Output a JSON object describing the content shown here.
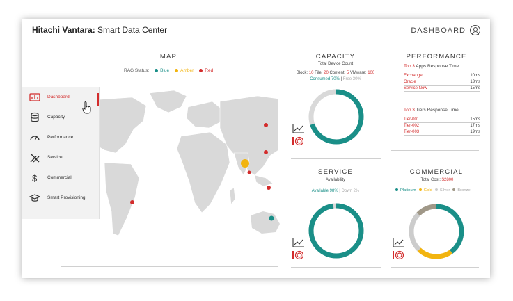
{
  "header": {
    "brand_bold": "Hitachi Vantara:",
    "brand_rest": "Smart Data Center",
    "nav_label": "DASHBOARD"
  },
  "map": {
    "title": "MAP",
    "rag_label": "RAG Status:",
    "rag": [
      {
        "label": "Blue",
        "color": "#1a8f88"
      },
      {
        "label": "Amber",
        "color": "#f2b40f"
      },
      {
        "label": "Red",
        "color": "#d32c2c"
      }
    ]
  },
  "menu": {
    "items": [
      {
        "label": "Dashboard",
        "icon": "dashboard-icon"
      },
      {
        "label": "Capacity",
        "icon": "database-icon"
      },
      {
        "label": "Performance",
        "icon": "gauge-icon"
      },
      {
        "label": "Service",
        "icon": "tools-icon"
      },
      {
        "label": "Commercial",
        "icon": "dollar-icon"
      },
      {
        "label": "Smart Provisioning",
        "icon": "graduation-cap-icon"
      }
    ]
  },
  "capacity": {
    "title": "CAPACITY",
    "subtitle": "Total Device Count",
    "counts_line": [
      "Block:",
      "10",
      "File:",
      "20",
      "Content:",
      "5",
      "VMware:",
      "100"
    ],
    "consumed": "Consumed 70%",
    "free": "Free 30%",
    "consumed_pct": 70
  },
  "performance": {
    "title": "PERFORMANCE",
    "apps_heading_top": "Top 3",
    "apps_heading_rest": "Apps Response Time",
    "apps": [
      {
        "name": "Exchange",
        "value": "10ms"
      },
      {
        "name": "Oracle",
        "value": "13ms"
      },
      {
        "name": "Service Now",
        "value": "15ms"
      }
    ],
    "tiers_heading_top": "Top 3",
    "tiers_heading_rest": "Tiers Response Time",
    "tiers": [
      {
        "name": "Tier-001",
        "value": "15ms"
      },
      {
        "name": "Tier-002",
        "value": "17ms"
      },
      {
        "name": "Tier-003",
        "value": "19ms"
      }
    ]
  },
  "service": {
    "title": "SERVICE",
    "subtitle": "Availability",
    "available": "Available 98%",
    "down": "Down 2%",
    "available_pct": 98
  },
  "commercial": {
    "title": "COMMERCIAL",
    "total_label": "Total Cost:",
    "total_value": "$2800",
    "legend": [
      {
        "label": "Platinum",
        "color": "#1a8f88"
      },
      {
        "label": "Gold",
        "color": "#f2b40f"
      },
      {
        "label": "Silver",
        "color": "#cccccc"
      },
      {
        "label": "Bronze",
        "color": "#a09888"
      }
    ],
    "segments_pct": [
      40,
      22,
      25,
      13
    ]
  },
  "colors": {
    "red": "#d32c2c",
    "teal": "#1a8f88",
    "amber": "#f2b40f"
  }
}
